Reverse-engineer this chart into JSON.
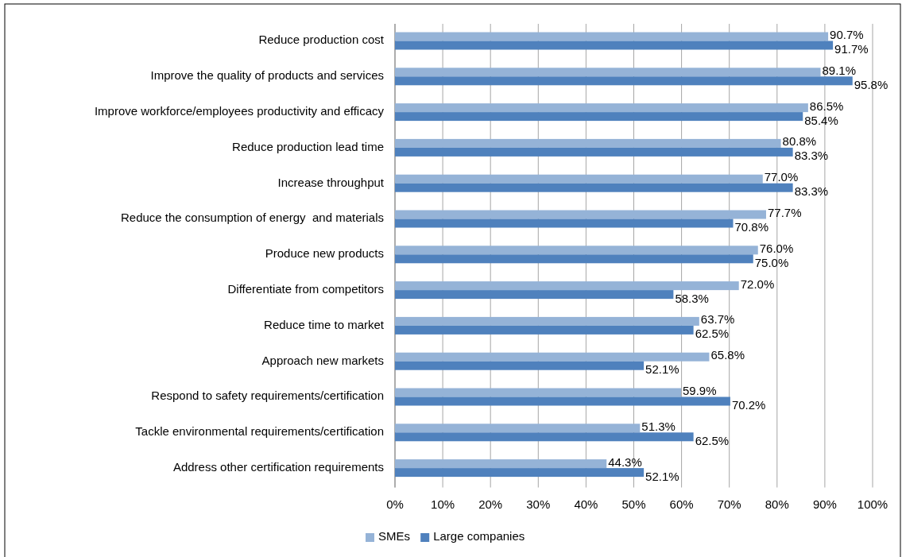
{
  "chart_data": {
    "type": "bar",
    "orientation": "horizontal",
    "categories": [
      "Reduce production cost",
      "Improve the quality of products and services",
      "Improve workforce/employees productivity and efficacy",
      "Reduce production lead time",
      "Increase throughput",
      "Reduce the consumption of energy  and materials",
      "Produce new products",
      "Differentiate from competitors",
      "Reduce time to market",
      "Approach new markets",
      "Respond to safety requirements/certification",
      "Tackle environmental requirements/certification",
      "Address other certification requirements"
    ],
    "series": [
      {
        "name": "SMEs",
        "color": "#95b3d7",
        "values": [
          90.7,
          89.1,
          86.5,
          80.8,
          77.0,
          77.7,
          76.0,
          72.0,
          63.7,
          65.8,
          59.9,
          51.3,
          44.3
        ],
        "value_labels": [
          "90.7%",
          "89.1%",
          "86.5%",
          "80.8%",
          "77.0%",
          "77.7%",
          "76.0%",
          "72.0%",
          "63.7%",
          "65.8%",
          "59.9%",
          "51.3%",
          "44.3%"
        ]
      },
      {
        "name": "Large companies",
        "color": "#4f81bd",
        "values": [
          91.7,
          95.8,
          85.4,
          83.3,
          83.3,
          70.8,
          75.0,
          58.3,
          62.5,
          52.1,
          70.2,
          62.5,
          52.1
        ],
        "value_labels": [
          "91.7%",
          "95.8%",
          "85.4%",
          "83.3%",
          "83.3%",
          "70.8%",
          "75.0%",
          "58.3%",
          "62.5%",
          "52.1%",
          "70.2%",
          "62.5%",
          "52.1%"
        ]
      }
    ],
    "xlim": [
      0,
      100
    ],
    "xticks": [
      {
        "value": 0,
        "label": "0%"
      },
      {
        "value": 10,
        "label": "10%"
      },
      {
        "value": 20,
        "label": "20%"
      },
      {
        "value": 30,
        "label": "30%"
      },
      {
        "value": 40,
        "label": "40%"
      },
      {
        "value": 50,
        "label": "50%"
      },
      {
        "value": 60,
        "label": "60%"
      },
      {
        "value": 70,
        "label": "70%"
      },
      {
        "value": 80,
        "label": "80%"
      },
      {
        "value": 90,
        "label": "90%"
      },
      {
        "value": 100,
        "label": "100%"
      }
    ],
    "grid": "x",
    "legend": "bottom"
  }
}
